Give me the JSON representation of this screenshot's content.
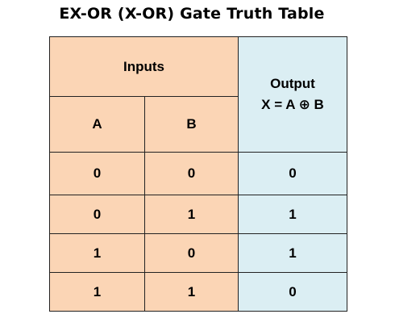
{
  "title": "EX-OR (X-OR) Gate Truth Table",
  "colors": {
    "input_fill": "#fbd5b5",
    "output_fill": "#dbeef3",
    "border": "#222222"
  },
  "table": {
    "inputs_header": "Inputs",
    "output_header": "Output",
    "output_expression": "X = A ⊕ B",
    "columns": [
      "A",
      "B"
    ],
    "rows": [
      {
        "a": "0",
        "b": "0",
        "x": "0"
      },
      {
        "a": "0",
        "b": "1",
        "x": "1"
      },
      {
        "a": "1",
        "b": "0",
        "x": "1"
      },
      {
        "a": "1",
        "b": "1",
        "x": "0"
      }
    ]
  }
}
